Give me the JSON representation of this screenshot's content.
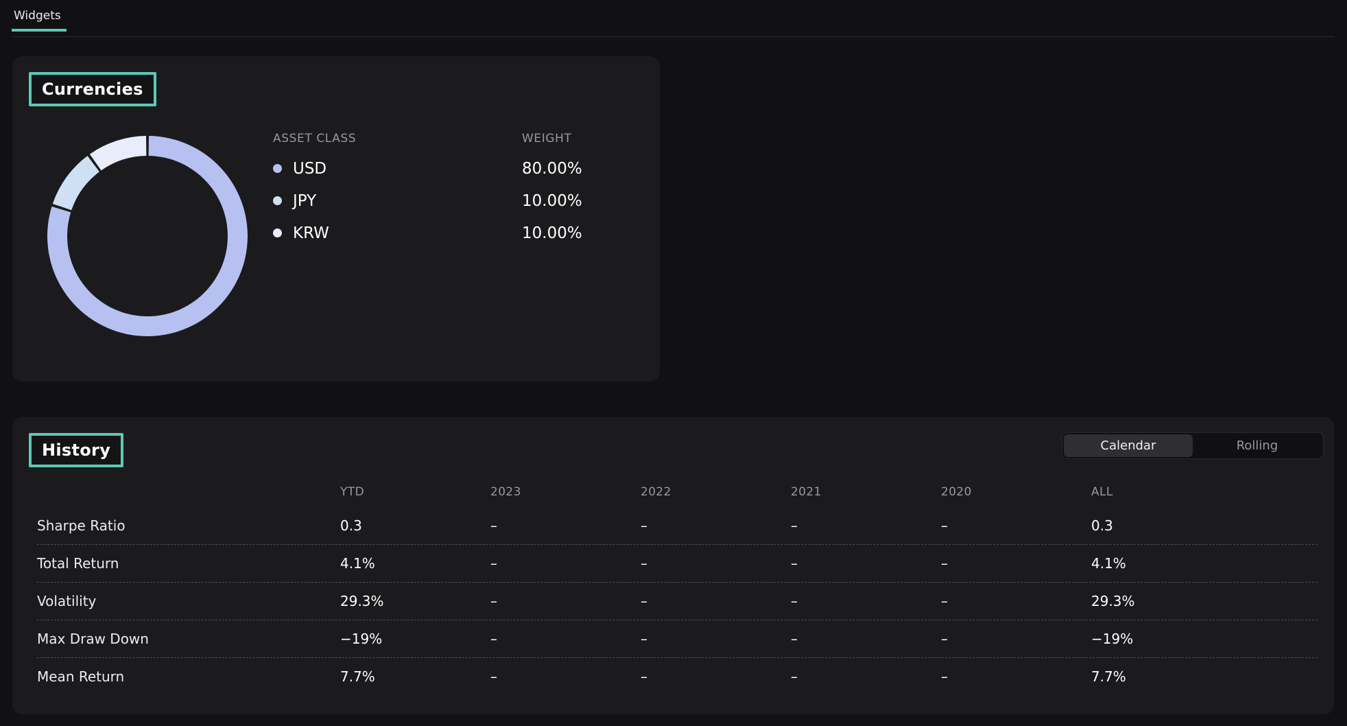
{
  "page": {
    "tab_label": "Widgets"
  },
  "theme": {
    "accent_teal": "#5CC9B5",
    "page_bg": "#111113",
    "card_bg": "#1B1B1E"
  },
  "currencies": {
    "title": "Currencies",
    "columns": {
      "asset_class": "ASSET CLASS",
      "weight": "WEIGHT"
    },
    "rows": [
      {
        "label": "USD",
        "weight": "80.00%",
        "color": "#B6C1F2"
      },
      {
        "label": "JPY",
        "weight": "10.00%",
        "color": "#CFE0F5"
      },
      {
        "label": "KRW",
        "weight": "10.00%",
        "color": "#E9EDFB"
      }
    ]
  },
  "history": {
    "title": "History",
    "toggle": {
      "options": [
        "Calendar",
        "Rolling"
      ],
      "selected": "Calendar"
    },
    "columns": [
      "YTD",
      "2023",
      "2022",
      "2021",
      "2020",
      "ALL"
    ],
    "rows": [
      {
        "label": "Sharpe Ratio",
        "values": [
          "0.3",
          "–",
          "–",
          "–",
          "–",
          "0.3"
        ]
      },
      {
        "label": "Total Return",
        "values": [
          "4.1%",
          "–",
          "–",
          "–",
          "–",
          "4.1%"
        ]
      },
      {
        "label": "Volatility",
        "values": [
          "29.3%",
          "–",
          "–",
          "–",
          "–",
          "29.3%"
        ]
      },
      {
        "label": "Max Draw Down",
        "values": [
          "−19%",
          "–",
          "–",
          "–",
          "–",
          "−19%"
        ]
      },
      {
        "label": "Mean Return",
        "values": [
          "7.7%",
          "–",
          "–",
          "–",
          "–",
          "7.7%"
        ]
      }
    ]
  },
  "chart_data": {
    "type": "pie",
    "donut": true,
    "title": "Currencies",
    "labels": [
      "USD",
      "JPY",
      "KRW"
    ],
    "values": [
      80,
      10,
      10
    ],
    "colors": [
      "#B6C1F2",
      "#CFE0F5",
      "#E9EDFB"
    ],
    "start_angle_deg": 0,
    "direction": "clockwise",
    "legend_position": "right"
  }
}
